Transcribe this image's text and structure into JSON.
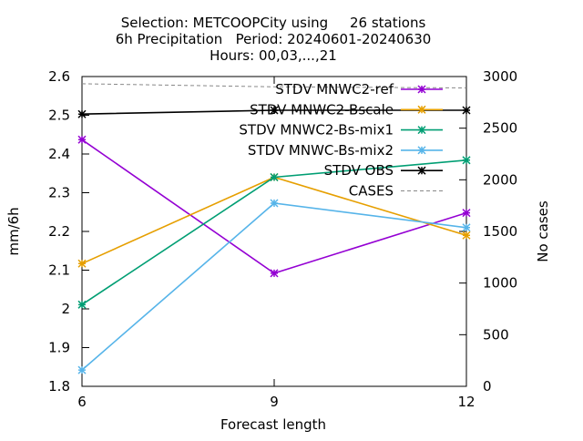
{
  "chart_data": {
    "type": "line",
    "title": [
      "Selection: METCOOPCity using     26 stations",
      "6h Precipitation   Period: 20240601-20240630",
      "Hours: 00,03,...,21"
    ],
    "xlabel": "Forecast length",
    "ylabel": "mm/6h",
    "y2label": "No cases",
    "x": [
      6,
      9,
      12
    ],
    "xticks": [
      "6",
      "9",
      "12"
    ],
    "xlim": [
      6,
      12
    ],
    "ylim": [
      1.8,
      2.6
    ],
    "yticks": [
      "1.8",
      "1.9",
      "2",
      "2.1",
      "2.2",
      "2.3",
      "2.4",
      "2.5",
      "2.6"
    ],
    "y2lim": [
      0,
      3000
    ],
    "y2ticks": [
      "0",
      "500",
      "1000",
      "1500",
      "2000",
      "2500",
      "3000"
    ],
    "grid": false,
    "legend_position": "top-right",
    "series": [
      {
        "name": "STDV MNWC2-ref",
        "color": "#9400d3",
        "marker": "x",
        "axis": "y",
        "values": [
          2.437,
          2.092,
          2.248
        ]
      },
      {
        "name": "STDV MNWC2-Bscale",
        "color": "#e69f00",
        "marker": "x",
        "axis": "y",
        "values": [
          2.117,
          2.34,
          2.19
        ]
      },
      {
        "name": "STDV MNWC2-Bs-mix1",
        "color": "#009e73",
        "marker": "x",
        "axis": "y",
        "values": [
          2.011,
          2.34,
          2.384
        ]
      },
      {
        "name": "STDV MNWC-Bs-mix2",
        "color": "#56b4e9",
        "marker": "x",
        "axis": "y",
        "values": [
          1.842,
          2.273,
          2.21
        ]
      },
      {
        "name": "STDV OBS",
        "color": "#000000",
        "marker": "x",
        "axis": "y",
        "values": [
          2.503,
          2.513,
          2.513
        ]
      },
      {
        "name": "CASES",
        "color": "#888888",
        "marker": "none",
        "dash": true,
        "axis": "y2",
        "values": [
          2930,
          2900,
          2890
        ]
      }
    ]
  }
}
